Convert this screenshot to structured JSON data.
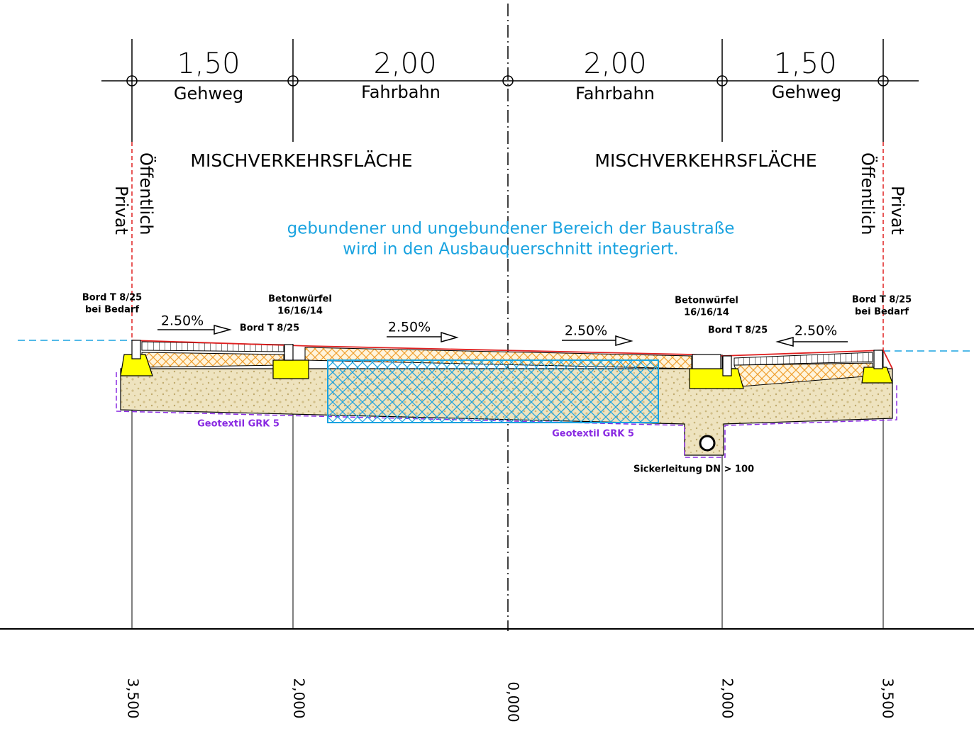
{
  "dimensions": [
    {
      "value": "1,50",
      "label": "Gehweg"
    },
    {
      "value": "2,00",
      "label": "Fahrbahn"
    },
    {
      "value": "2,00",
      "label": "Fahrbahn"
    },
    {
      "value": "1,50",
      "label": "Gehweg"
    }
  ],
  "zones": [
    "MISCHVERKEHRSFLÄCHE",
    "MISCHVERKEHRSFLÄCHE"
  ],
  "boundary": {
    "left": {
      "outer": "Privat",
      "inner": "Öffentlich"
    },
    "right": {
      "outer": "Privat",
      "inner": "Öffentlich"
    }
  },
  "note": [
    "gebundener und ungebundener Bereich der Baustraße",
    "wird in den Ausbauquerschnitt integriert."
  ],
  "labels": {
    "curb_left": [
      "Bord T 8/25",
      "bei Bedarf"
    ],
    "cube_left": [
      "Betonwürfel",
      "16/16/14"
    ],
    "bord_left": "Bord T 8/25",
    "cube_right": [
      "Betonwürfel",
      "16/16/14"
    ],
    "bord_right": "Bord T 8/25",
    "curb_right": [
      "Bord T 8/25",
      "bei Bedarf"
    ],
    "geotextile": [
      "Geotextil GRK 5",
      "Geotextil GRK 5"
    ],
    "drain": "Sickerleitung DN > 100"
  },
  "slopes": [
    "2.50%",
    "2.50%",
    "2.50%",
    "2.50%"
  ],
  "stations": [
    "3,500",
    "2,000",
    "0,000",
    "2,000",
    "3,500"
  ]
}
